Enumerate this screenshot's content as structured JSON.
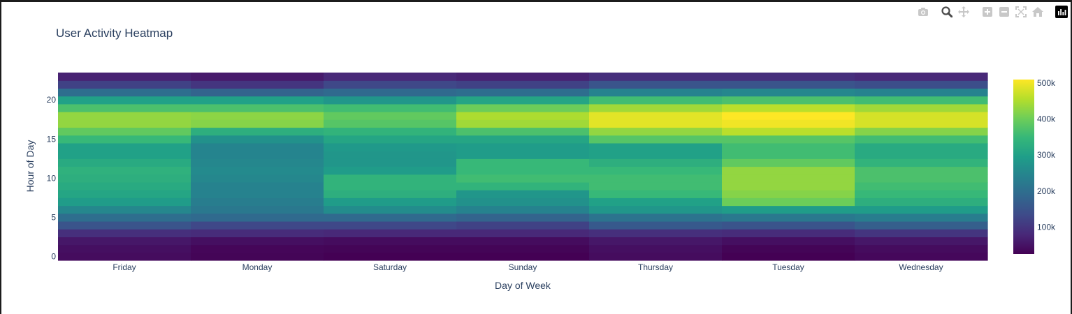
{
  "modebar": {
    "buttons": [
      {
        "name": "camera-icon",
        "color": "#c8c8c8"
      },
      {
        "name": "zoom-icon",
        "color": "#4a4a4a"
      },
      {
        "name": "pan-icon",
        "color": "#c8c8c8"
      },
      {
        "name": "zoom-in-icon",
        "color": "#c8c8c8"
      },
      {
        "name": "zoom-out-icon",
        "color": "#c8c8c8"
      },
      {
        "name": "autoscale-icon",
        "color": "#c8c8c8"
      },
      {
        "name": "reset-axes-icon",
        "color": "#c8c8c8"
      },
      {
        "name": "plotly-logo-icon",
        "color": "#000000"
      }
    ]
  },
  "chart_data": {
    "type": "heatmap",
    "title": "User Activity Heatmap",
    "xlabel": "Day of Week",
    "ylabel": "Hour of Day",
    "categories": [
      "Friday",
      "Monday",
      "Saturday",
      "Sunday",
      "Thursday",
      "Tuesday",
      "Wednesday"
    ],
    "y": [
      0,
      1,
      2,
      3,
      4,
      5,
      6,
      7,
      8,
      9,
      10,
      11,
      12,
      13,
      14,
      15,
      16,
      17,
      18,
      19,
      20,
      21,
      22,
      23
    ],
    "y_ticks": [
      0,
      5,
      10,
      15,
      20
    ],
    "colorscale": "Viridis",
    "zmin": 25000,
    "zmax": 510000,
    "colorbar_ticks": [
      100000,
      200000,
      300000,
      400000,
      500000
    ],
    "colorbar_tick_labels": [
      "100k",
      "200k",
      "300k",
      "400k",
      "500k"
    ],
    "z": [
      [
        40000,
        30000,
        25000,
        25000,
        40000,
        25000,
        35000
      ],
      [
        45000,
        32000,
        30000,
        30000,
        45000,
        30000,
        40000
      ],
      [
        55000,
        45000,
        40000,
        40000,
        55000,
        45000,
        55000
      ],
      [
        90000,
        85000,
        80000,
        80000,
        90000,
        85000,
        100000
      ],
      [
        150000,
        130000,
        130000,
        120000,
        160000,
        150000,
        170000
      ],
      [
        200000,
        190000,
        190000,
        180000,
        210000,
        220000,
        230000
      ],
      [
        250000,
        220000,
        260000,
        240000,
        280000,
        290000,
        290000
      ],
      [
        290000,
        230000,
        290000,
        270000,
        300000,
        400000,
        330000
      ],
      [
        310000,
        240000,
        330000,
        280000,
        350000,
        420000,
        350000
      ],
      [
        320000,
        240000,
        340000,
        340000,
        360000,
        430000,
        360000
      ],
      [
        330000,
        250000,
        340000,
        360000,
        360000,
        430000,
        370000
      ],
      [
        335000,
        255000,
        290000,
        350000,
        350000,
        430000,
        370000
      ],
      [
        320000,
        250000,
        280000,
        350000,
        330000,
        390000,
        340000
      ],
      [
        300000,
        245000,
        280000,
        290000,
        300000,
        360000,
        320000
      ],
      [
        300000,
        245000,
        285000,
        290000,
        300000,
        360000,
        320000
      ],
      [
        350000,
        270000,
        310000,
        310000,
        380000,
        380000,
        360000
      ],
      [
        390000,
        330000,
        340000,
        370000,
        430000,
        460000,
        420000
      ],
      [
        430000,
        420000,
        380000,
        440000,
        490000,
        500000,
        480000
      ],
      [
        430000,
        425000,
        390000,
        450000,
        490000,
        510000,
        480000
      ],
      [
        370000,
        370000,
        360000,
        400000,
        440000,
        460000,
        440000
      ],
      [
        300000,
        300000,
        280000,
        310000,
        360000,
        370000,
        360000
      ],
      [
        200000,
        180000,
        190000,
        200000,
        240000,
        250000,
        240000
      ],
      [
        120000,
        100000,
        130000,
        120000,
        150000,
        150000,
        140000
      ],
      [
        70000,
        60000,
        80000,
        70000,
        90000,
        90000,
        80000
      ]
    ]
  }
}
